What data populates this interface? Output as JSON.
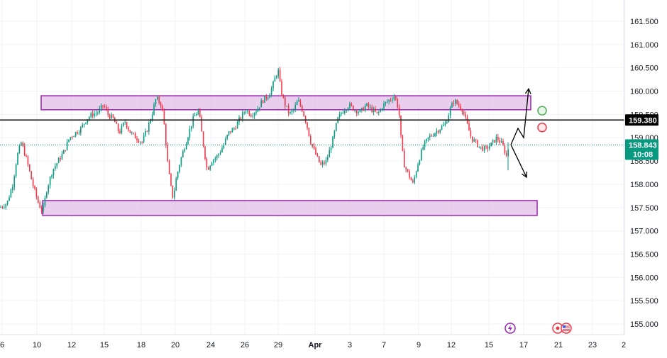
{
  "chart_data": {
    "type": "candlestick",
    "y_axis": {
      "position": "right",
      "ticks": [
        "161.500",
        "161.000",
        "160.500",
        "160.000",
        "159.500",
        "159.000",
        "158.500",
        "158.000",
        "157.500",
        "157.000",
        "156.500",
        "156.000",
        "155.500",
        "155.000"
      ],
      "range": [
        154.7,
        161.9
      ]
    },
    "x_axis": {
      "ticks": [
        "6",
        "10",
        "12",
        "15",
        "18",
        "20",
        "24",
        "26",
        "29",
        "Apr",
        "3",
        "7",
        "9",
        "12",
        "15",
        "17",
        "21",
        "23",
        "2"
      ]
    },
    "price_path": [
      [
        0,
        157.5
      ],
      [
        10,
        157.6
      ],
      [
        18,
        158.0
      ],
      [
        24,
        158.6
      ],
      [
        30,
        158.9
      ],
      [
        38,
        158.5
      ],
      [
        46,
        158.0
      ],
      [
        54,
        157.6
      ],
      [
        60,
        157.4
      ],
      [
        66,
        157.9
      ],
      [
        74,
        158.3
      ],
      [
        82,
        158.5
      ],
      [
        90,
        158.7
      ],
      [
        98,
        159.0
      ],
      [
        106,
        159.1
      ],
      [
        114,
        159.2
      ],
      [
        122,
        159.4
      ],
      [
        130,
        159.5
      ],
      [
        138,
        159.55
      ],
      [
        146,
        159.7
      ],
      [
        152,
        159.5
      ],
      [
        160,
        159.4
      ],
      [
        168,
        159.1
      ],
      [
        176,
        159.35
      ],
      [
        184,
        159.1
      ],
      [
        192,
        159.0
      ],
      [
        200,
        158.9
      ],
      [
        208,
        159.2
      ],
      [
        214,
        159.5
      ],
      [
        220,
        159.85
      ],
      [
        228,
        159.7
      ],
      [
        232,
        159.2
      ],
      [
        236,
        158.5
      ],
      [
        240,
        158.0
      ],
      [
        244,
        157.7
      ],
      [
        248,
        158.1
      ],
      [
        254,
        158.5
      ],
      [
        260,
        158.8
      ],
      [
        266,
        159.1
      ],
      [
        272,
        159.4
      ],
      [
        280,
        159.6
      ],
      [
        286,
        158.9
      ],
      [
        292,
        158.3
      ],
      [
        298,
        158.5
      ],
      [
        306,
        158.6
      ],
      [
        314,
        158.8
      ],
      [
        322,
        159.1
      ],
      [
        330,
        159.2
      ],
      [
        338,
        159.4
      ],
      [
        346,
        159.6
      ],
      [
        354,
        159.5
      ],
      [
        362,
        159.6
      ],
      [
        370,
        159.8
      ],
      [
        378,
        159.9
      ],
      [
        384,
        160.1
      ],
      [
        388,
        160.3
      ],
      [
        392,
        160.45
      ],
      [
        396,
        160.0
      ],
      [
        402,
        159.7
      ],
      [
        408,
        159.5
      ],
      [
        414,
        159.6
      ],
      [
        420,
        159.8
      ],
      [
        426,
        159.6
      ],
      [
        432,
        159.3
      ],
      [
        438,
        158.9
      ],
      [
        446,
        158.6
      ],
      [
        452,
        158.4
      ],
      [
        460,
        158.5
      ],
      [
        468,
        158.9
      ],
      [
        476,
        159.4
      ],
      [
        484,
        159.6
      ],
      [
        492,
        159.7
      ],
      [
        500,
        159.6
      ],
      [
        508,
        159.55
      ],
      [
        516,
        159.7
      ],
      [
        524,
        159.6
      ],
      [
        532,
        159.5
      ],
      [
        540,
        159.7
      ],
      [
        548,
        159.8
      ],
      [
        556,
        159.9
      ],
      [
        562,
        159.6
      ],
      [
        566,
        158.8
      ],
      [
        570,
        158.4
      ],
      [
        576,
        158.2
      ],
      [
        582,
        158.0
      ],
      [
        588,
        158.4
      ],
      [
        596,
        158.8
      ],
      [
        604,
        159.0
      ],
      [
        612,
        159.1
      ],
      [
        620,
        159.2
      ],
      [
        628,
        159.3
      ],
      [
        634,
        159.6
      ],
      [
        640,
        159.8
      ],
      [
        646,
        159.7
      ],
      [
        652,
        159.6
      ],
      [
        658,
        159.3
      ],
      [
        664,
        159.0
      ],
      [
        670,
        158.9
      ],
      [
        676,
        158.8
      ],
      [
        684,
        158.75
      ],
      [
        692,
        158.85
      ],
      [
        700,
        159.0
      ],
      [
        708,
        158.85
      ],
      [
        714,
        158.6
      ],
      [
        718,
        158.9
      ]
    ],
    "last_price": {
      "value": 158.843,
      "label": "158.843",
      "countdown": "10:08",
      "color": "#089981"
    },
    "horizontal_line": {
      "value": 159.38,
      "label": "159.380",
      "color": "#000000"
    },
    "zones": [
      {
        "type": "resistance",
        "x_start": 58,
        "x_end": 748,
        "y_top": 159.9,
        "y_bottom": 159.6,
        "fill": "#e1bee7",
        "stroke": "#9c27b0"
      },
      {
        "type": "support",
        "x_start": 60,
        "x_end": 757,
        "y_top": 157.65,
        "y_bottom": 157.33,
        "fill": "#e1bee7",
        "stroke": "#9c27b0"
      }
    ],
    "projections": [
      {
        "name": "bullish",
        "points": [
          [
            720,
            158.85
          ],
          [
            730,
            159.2
          ],
          [
            738,
            159.0
          ],
          [
            745,
            160.05
          ]
        ]
      },
      {
        "name": "bearish",
        "points": [
          [
            720,
            158.85
          ],
          [
            742,
            158.15
          ]
        ]
      }
    ],
    "markers": [
      {
        "name": "green-circle",
        "x": 764,
        "value": 159.58,
        "color": "#4caf50",
        "fill": "#e8f5e9"
      },
      {
        "name": "red-circle",
        "x": 764,
        "value": 159.22,
        "color": "#f23645",
        "fill": "#fde8ea"
      }
    ],
    "colors": {
      "up": "#089981",
      "down": "#f23645",
      "grid": "#f0f3fa",
      "axis": "#e0e3eb",
      "event": "#9c27b0"
    },
    "events": [
      {
        "name": "lightning-event-icon",
        "x": 719
      },
      {
        "name": "us-flag-event-icon",
        "x": 798
      }
    ]
  }
}
